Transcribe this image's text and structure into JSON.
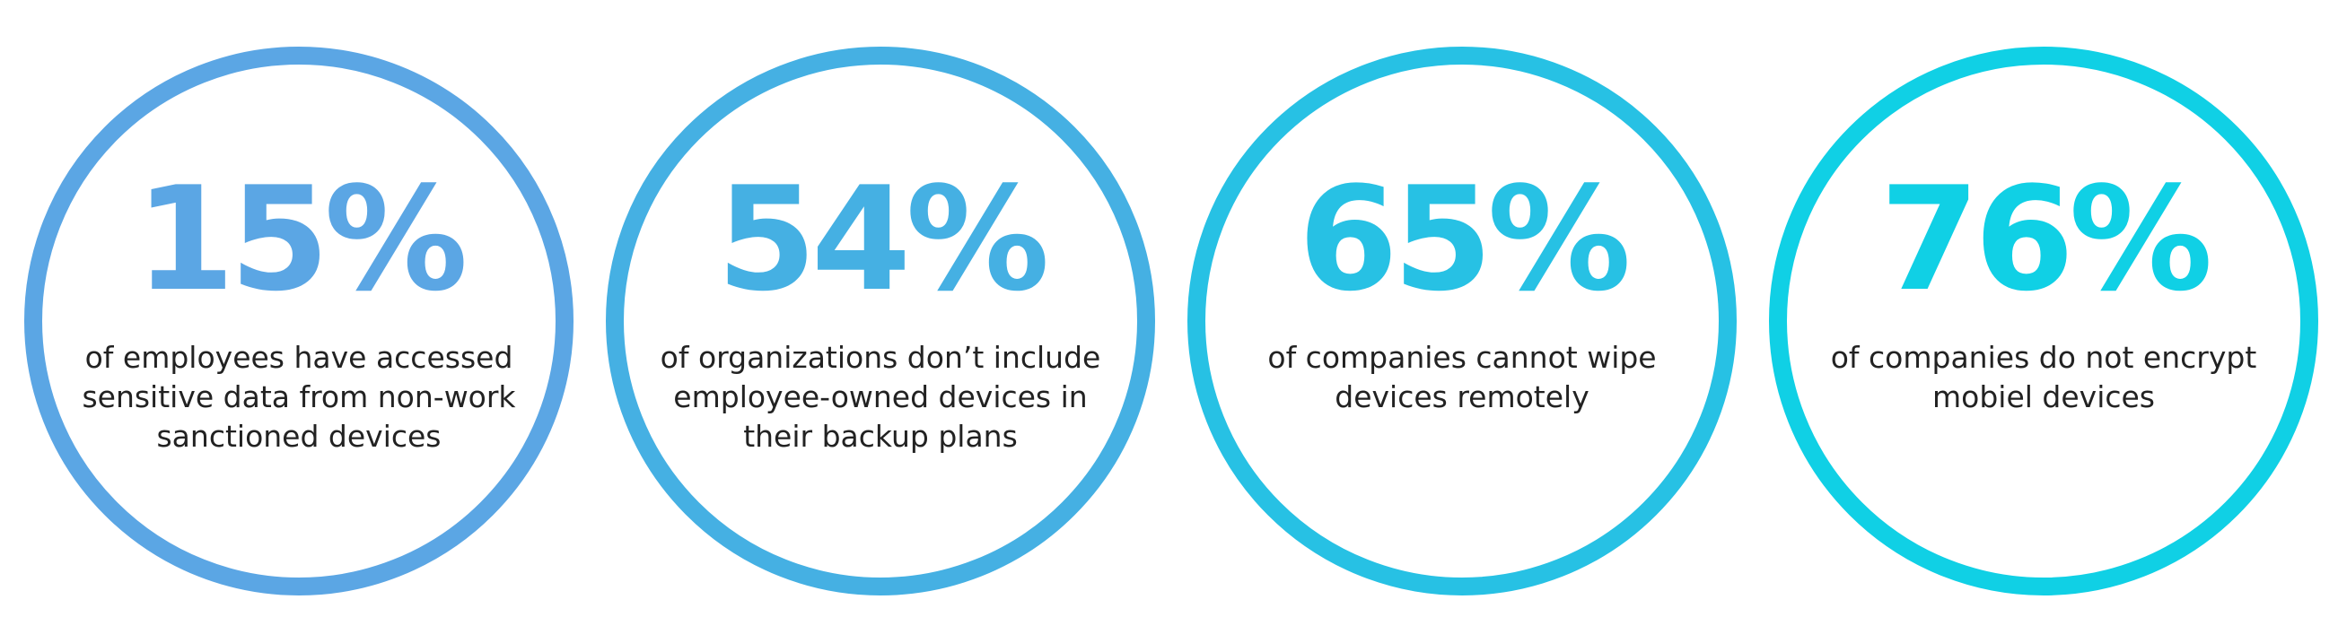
{
  "stats": [
    {
      "value": "15%",
      "description": "of employees have accessed sensitive data from non-work sanctioned devices",
      "color": "#5ba6e4"
    },
    {
      "value": "54%",
      "description": "of organizations don’t include employee-owned devices in their backup plans",
      "color": "#45b0e3"
    },
    {
      "value": "65%",
      "description": "of companies cannot wipe devices remotely",
      "color": "#27c1e4"
    },
    {
      "value": "76%",
      "description": "of companies do not encrypt mobiel devices",
      "color": "#10d0e5"
    }
  ]
}
